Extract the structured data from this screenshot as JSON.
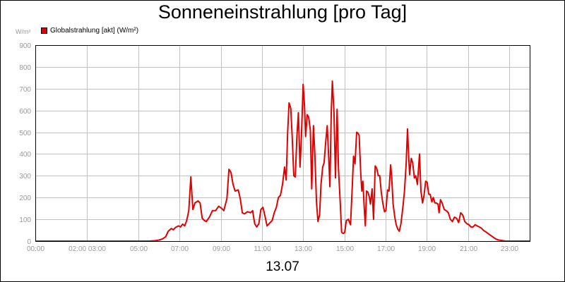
{
  "chart_data": {
    "type": "line",
    "title": "Sonneneinstrahlung [pro Tag]",
    "ylabel": "W/m²",
    "xlabel": "13.07",
    "legend": "top-left",
    "grid": true,
    "ylim": [
      0,
      900
    ],
    "xlim": [
      0,
      24
    ],
    "y_ticks": [
      0,
      100,
      200,
      300,
      400,
      500,
      600,
      700,
      800,
      900
    ],
    "x_ticks": [
      {
        "pos": 0,
        "label": "00:00"
      },
      {
        "pos": 2.5,
        "label": "02:00 03:00"
      },
      {
        "pos": 5,
        "label": "05:00"
      },
      {
        "pos": 7,
        "label": "07:00"
      },
      {
        "pos": 9,
        "label": "09:00"
      },
      {
        "pos": 11,
        "label": "11:00"
      },
      {
        "pos": 13,
        "label": "13:00"
      },
      {
        "pos": 15,
        "label": "15:00"
      },
      {
        "pos": 17,
        "label": "17:00"
      },
      {
        "pos": 19,
        "label": "19:00"
      },
      {
        "pos": 21,
        "label": "21:00"
      },
      {
        "pos": 23,
        "label": "23:00"
      }
    ],
    "series": [
      {
        "name": "Globalstrahlung [akt] (W/m²)",
        "color": "#e00000",
        "points": [
          [
            0,
            0
          ],
          [
            5.5,
            0
          ],
          [
            5.83,
            2
          ],
          [
            6,
            5
          ],
          [
            6.17,
            10
          ],
          [
            6.33,
            20
          ],
          [
            6.45,
            45
          ],
          [
            6.6,
            58
          ],
          [
            6.7,
            52
          ],
          [
            6.8,
            62
          ],
          [
            6.95,
            70
          ],
          [
            7.05,
            65
          ],
          [
            7.15,
            78
          ],
          [
            7.25,
            70
          ],
          [
            7.35,
            95
          ],
          [
            7.45,
            140
          ],
          [
            7.55,
            295
          ],
          [
            7.65,
            145
          ],
          [
            7.75,
            175
          ],
          [
            7.9,
            185
          ],
          [
            8.0,
            175
          ],
          [
            8.1,
            105
          ],
          [
            8.2,
            95
          ],
          [
            8.3,
            90
          ],
          [
            8.45,
            110
          ],
          [
            8.6,
            140
          ],
          [
            8.75,
            140
          ],
          [
            8.9,
            160
          ],
          [
            9.05,
            150
          ],
          [
            9.15,
            140
          ],
          [
            9.3,
            195
          ],
          [
            9.4,
            330
          ],
          [
            9.5,
            315
          ],
          [
            9.6,
            260
          ],
          [
            9.7,
            230
          ],
          [
            9.85,
            235
          ],
          [
            9.95,
            195
          ],
          [
            10.05,
            130
          ],
          [
            10.15,
            125
          ],
          [
            10.3,
            135
          ],
          [
            10.45,
            130
          ],
          [
            10.55,
            140
          ],
          [
            10.65,
            80
          ],
          [
            10.75,
            65
          ],
          [
            10.85,
            80
          ],
          [
            10.95,
            145
          ],
          [
            11.05,
            155
          ],
          [
            11.15,
            115
          ],
          [
            11.25,
            70
          ],
          [
            11.35,
            80
          ],
          [
            11.5,
            95
          ],
          [
            11.6,
            130
          ],
          [
            11.7,
            155
          ],
          [
            11.8,
            200
          ],
          [
            11.9,
            210
          ],
          [
            12.0,
            260
          ],
          [
            12.1,
            340
          ],
          [
            12.18,
            280
          ],
          [
            12.25,
            500
          ],
          [
            12.32,
            635
          ],
          [
            12.4,
            610
          ],
          [
            12.47,
            480
          ],
          [
            12.55,
            300
          ],
          [
            12.62,
            295
          ],
          [
            12.7,
            480
          ],
          [
            12.77,
            590
          ],
          [
            12.85,
            340
          ],
          [
            12.92,
            480
          ],
          [
            13.0,
            720
          ],
          [
            13.07,
            620
          ],
          [
            13.12,
            480
          ],
          [
            13.2,
            580
          ],
          [
            13.27,
            570
          ],
          [
            13.35,
            510
          ],
          [
            13.42,
            240
          ],
          [
            13.5,
            530
          ],
          [
            13.57,
            400
          ],
          [
            13.65,
            180
          ],
          [
            13.72,
            90
          ],
          [
            13.8,
            120
          ],
          [
            13.87,
            260
          ],
          [
            13.95,
            340
          ],
          [
            14.02,
            360
          ],
          [
            14.1,
            460
          ],
          [
            14.17,
            530
          ],
          [
            14.25,
            370
          ],
          [
            14.3,
            250
          ],
          [
            14.37,
            600
          ],
          [
            14.42,
            735
          ],
          [
            14.5,
            590
          ],
          [
            14.57,
            290
          ],
          [
            14.65,
            605
          ],
          [
            14.72,
            330
          ],
          [
            14.8,
            180
          ],
          [
            14.87,
            40
          ],
          [
            14.95,
            35
          ],
          [
            15.02,
            40
          ],
          [
            15.1,
            95
          ],
          [
            15.2,
            100
          ],
          [
            15.3,
            75
          ],
          [
            15.4,
            280
          ],
          [
            15.45,
            390
          ],
          [
            15.52,
            355
          ],
          [
            15.6,
            500
          ],
          [
            15.67,
            495
          ],
          [
            15.72,
            485
          ],
          [
            15.8,
            310
          ],
          [
            15.85,
            230
          ],
          [
            15.9,
            275
          ],
          [
            15.97,
            150
          ],
          [
            16.02,
            70
          ],
          [
            16.08,
            230
          ],
          [
            16.15,
            225
          ],
          [
            16.22,
            200
          ],
          [
            16.27,
            170
          ],
          [
            16.35,
            240
          ],
          [
            16.42,
            100
          ],
          [
            16.5,
            345
          ],
          [
            16.57,
            335
          ],
          [
            16.65,
            300
          ],
          [
            16.72,
            300
          ],
          [
            16.8,
            220
          ],
          [
            16.87,
            175
          ],
          [
            16.95,
            135
          ],
          [
            17.02,
            140
          ],
          [
            17.1,
            235
          ],
          [
            17.17,
            230
          ],
          [
            17.25,
            350
          ],
          [
            17.3,
            295
          ],
          [
            17.37,
            170
          ],
          [
            17.45,
            110
          ],
          [
            17.52,
            75
          ],
          [
            17.6,
            55
          ],
          [
            17.67,
            45
          ],
          [
            17.75,
            80
          ],
          [
            17.85,
            160
          ],
          [
            17.92,
            230
          ],
          [
            18.0,
            350
          ],
          [
            18.07,
            515
          ],
          [
            18.12,
            400
          ],
          [
            18.17,
            305
          ],
          [
            18.25,
            380
          ],
          [
            18.32,
            360
          ],
          [
            18.4,
            290
          ],
          [
            18.47,
            300
          ],
          [
            18.55,
            260
          ],
          [
            18.6,
            330
          ],
          [
            18.65,
            400
          ],
          [
            18.72,
            230
          ],
          [
            18.8,
            175
          ],
          [
            18.87,
            210
          ],
          [
            18.95,
            275
          ],
          [
            19.02,
            270
          ],
          [
            19.1,
            215
          ],
          [
            19.17,
            215
          ],
          [
            19.25,
            180
          ],
          [
            19.32,
            200
          ],
          [
            19.4,
            175
          ],
          [
            19.47,
            175
          ],
          [
            19.55,
            170
          ],
          [
            19.6,
            130
          ],
          [
            19.67,
            190
          ],
          [
            19.75,
            175
          ],
          [
            19.85,
            145
          ],
          [
            19.95,
            140
          ],
          [
            20.05,
            130
          ],
          [
            20.15,
            100
          ],
          [
            20.25,
            90
          ],
          [
            20.35,
            110
          ],
          [
            20.45,
            105
          ],
          [
            20.55,
            85
          ],
          [
            20.65,
            130
          ],
          [
            20.75,
            120
          ],
          [
            20.85,
            90
          ],
          [
            20.95,
            80
          ],
          [
            21.05,
            75
          ],
          [
            21.15,
            65
          ],
          [
            21.25,
            65
          ],
          [
            21.35,
            75
          ],
          [
            21.45,
            70
          ],
          [
            21.55,
            65
          ],
          [
            21.65,
            60
          ],
          [
            21.75,
            50
          ],
          [
            21.9,
            40
          ],
          [
            22.05,
            30
          ],
          [
            22.2,
            20
          ],
          [
            22.35,
            10
          ],
          [
            22.5,
            5
          ],
          [
            22.7,
            2
          ],
          [
            22.85,
            0
          ],
          [
            24,
            0
          ]
        ]
      }
    ]
  }
}
